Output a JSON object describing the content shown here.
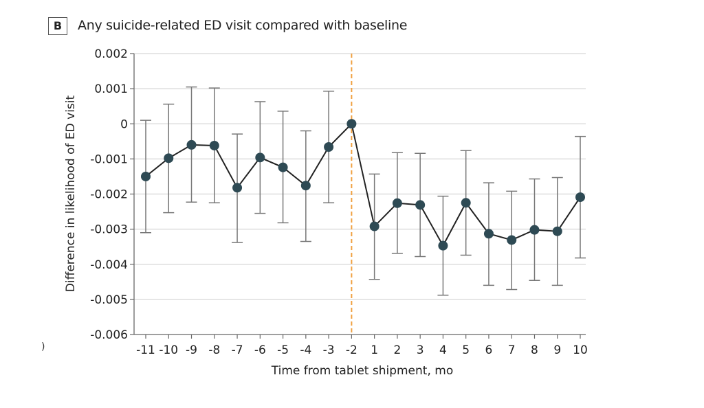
{
  "panel": {
    "label": "B",
    "title": "Any suicide-related ED visit compared with baseline"
  },
  "stray_mark": ")",
  "colors": {
    "marker": "#2E4A54",
    "line": "#222222",
    "errorbar": "#777777",
    "reference_line": "#F0A040",
    "grid": "#DDDDDD",
    "axis": "#666666"
  },
  "chart_data": {
    "type": "line",
    "title": "Any suicide-related ED visit compared with baseline",
    "xlabel": "Time from tablet shipment, mo",
    "ylabel": "Difference in likelihood of ED visit",
    "ylim": [
      -0.006,
      0.002
    ],
    "yticks": [
      0.002,
      0.001,
      0,
      -0.001,
      -0.002,
      -0.003,
      -0.004,
      -0.005,
      -0.006
    ],
    "ytick_labels": [
      "0.002",
      "0.001",
      "0",
      "-0.001",
      "-0.002",
      "-0.003",
      "-0.004",
      "-0.005",
      "-0.006"
    ],
    "grid": true,
    "reference_line": {
      "at_category": "-2",
      "style": "dashed"
    },
    "categories": [
      "-11",
      "-10",
      "-9",
      "-8",
      "-7",
      "-6",
      "-5",
      "-4",
      "-3",
      "-2",
      "1",
      "2",
      "3",
      "4",
      "5",
      "6",
      "7",
      "8",
      "9",
      "10"
    ],
    "series": [
      {
        "name": "Difference in likelihood",
        "values": [
          -0.0015,
          -0.00098,
          -0.0006,
          -0.00062,
          -0.00182,
          -0.00096,
          -0.00124,
          -0.00176,
          -0.00066,
          0,
          -0.00292,
          -0.00226,
          -0.00231,
          -0.00347,
          -0.00225,
          -0.00313,
          -0.00331,
          -0.00302,
          -0.00306,
          -0.00209
        ],
        "ci_upper": [
          0.0001,
          0.00056,
          0.00105,
          0.00102,
          -0.00029,
          0.00063,
          0.00036,
          -0.0002,
          0.00093,
          null,
          -0.00143,
          -0.00082,
          -0.00084,
          -0.00206,
          -0.00076,
          -0.00168,
          -0.00192,
          -0.00157,
          -0.00153,
          -0.00036
        ],
        "ci_lower": [
          -0.0031,
          -0.00253,
          -0.00223,
          -0.00225,
          -0.00338,
          -0.00255,
          -0.00282,
          -0.00335,
          -0.00225,
          null,
          -0.00443,
          -0.00369,
          -0.00378,
          -0.00488,
          -0.00374,
          -0.0046,
          -0.00472,
          -0.00446,
          -0.0046,
          -0.00382
        ]
      }
    ]
  }
}
